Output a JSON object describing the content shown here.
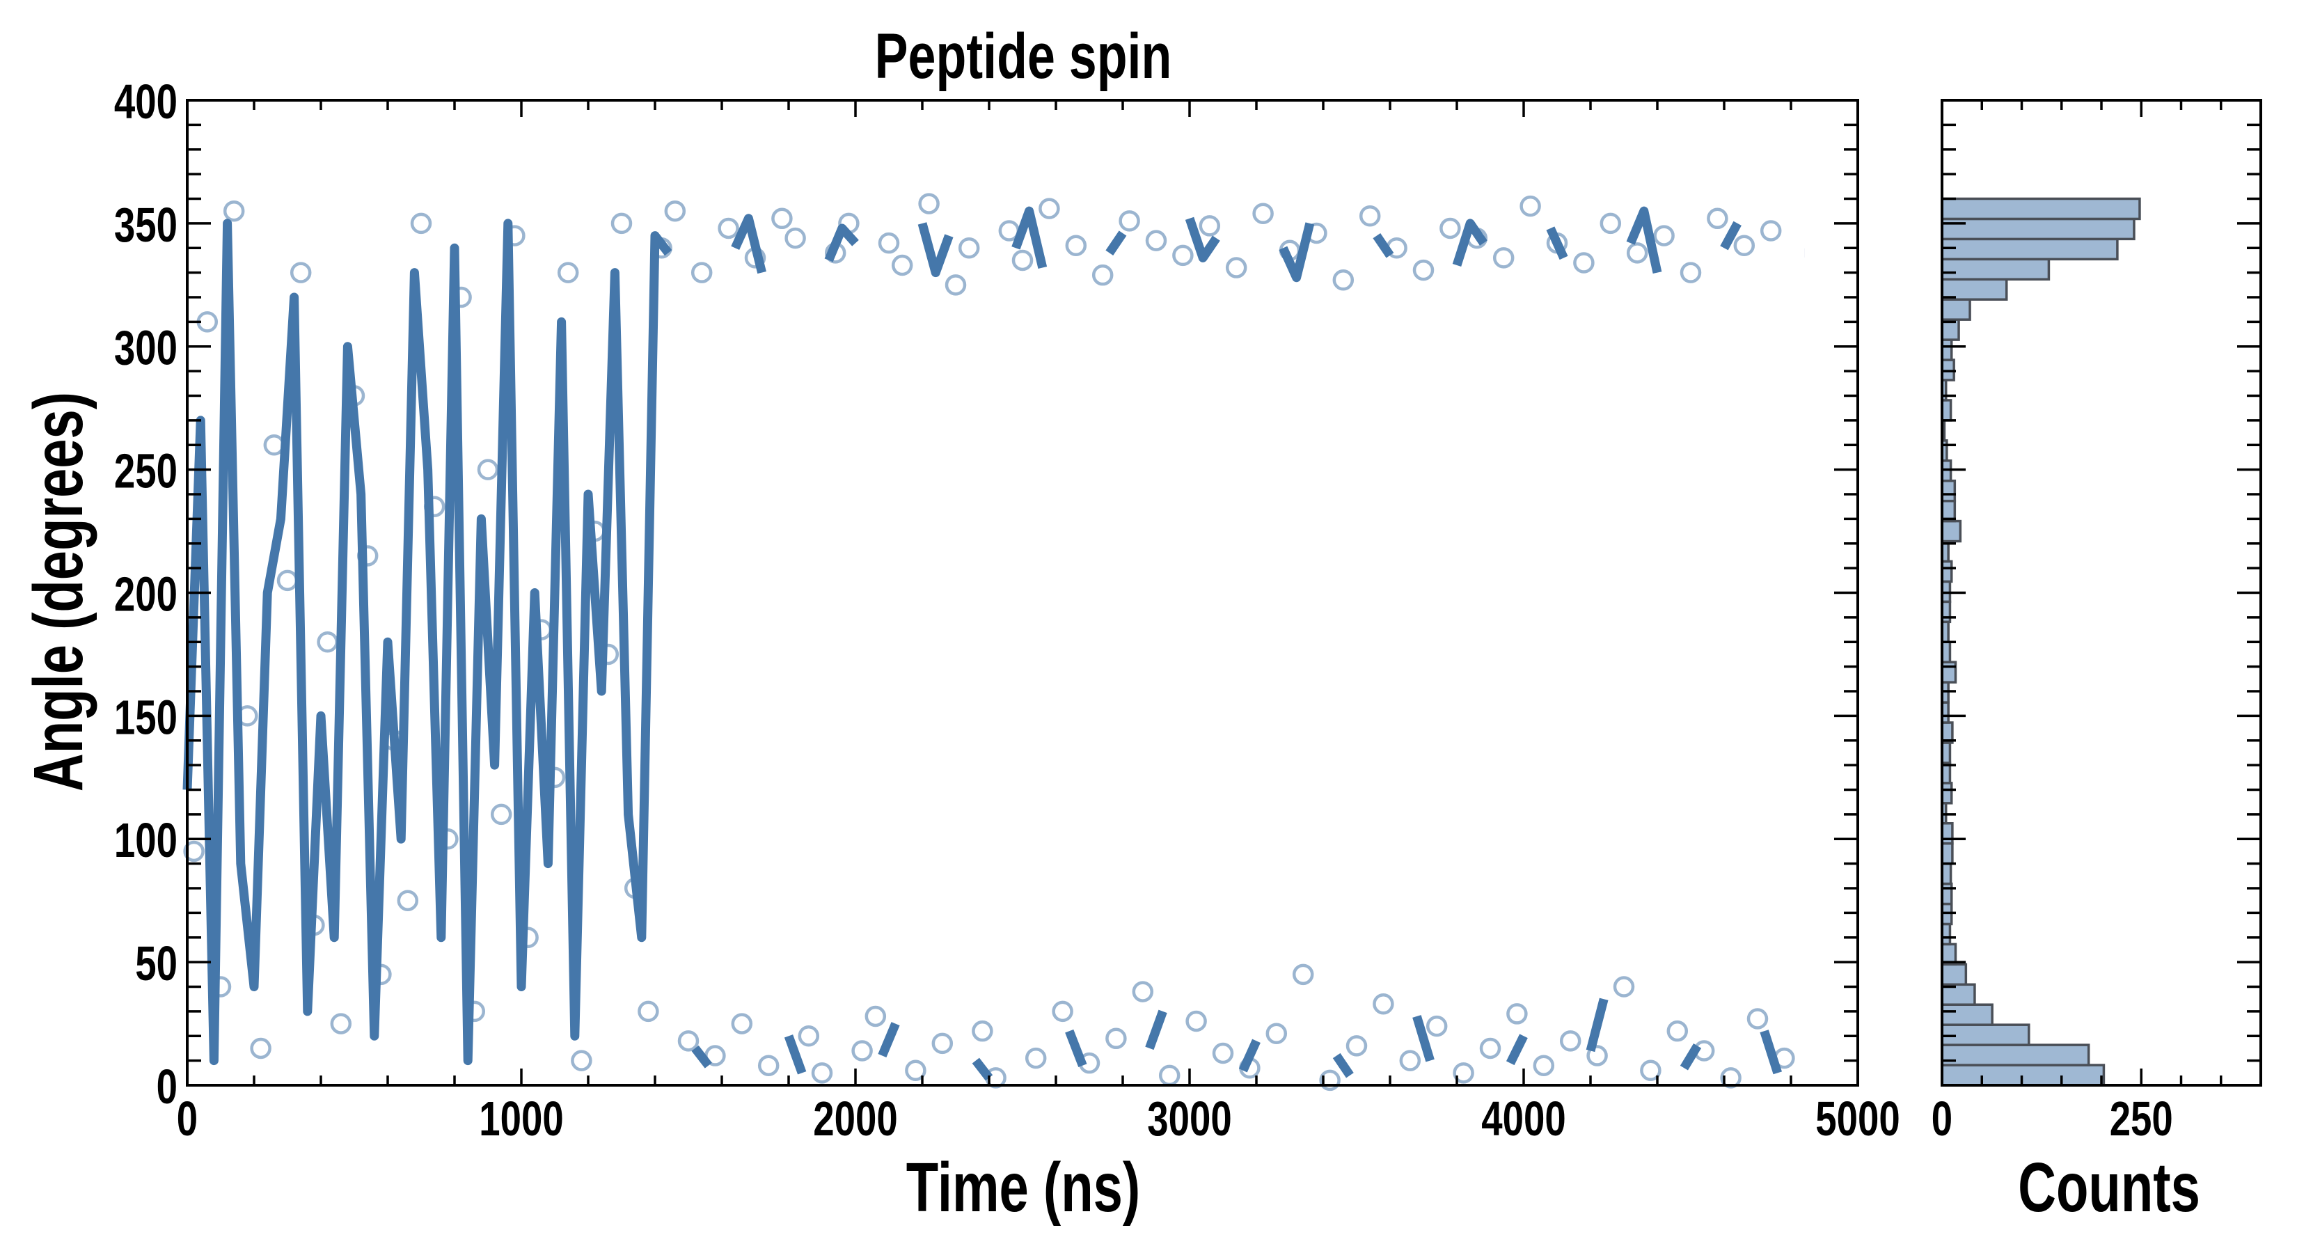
{
  "chart_data": [
    {
      "type": "scatter",
      "title": "Peptide spin",
      "xlabel": "Time (ns)",
      "ylabel": "Angle (degrees)",
      "xlim": [
        0,
        5000
      ],
      "ylim": [
        0,
        400
      ],
      "xticks": [
        0,
        1000,
        2000,
        3000,
        4000,
        5000
      ],
      "yticks": [
        0,
        50,
        100,
        150,
        200,
        250,
        300,
        350,
        400
      ],
      "grid": false,
      "colors": {
        "line": "#4577aa",
        "marker": "#8aa8c8"
      },
      "line_series": {
        "name": "angle trace",
        "t_start": 0,
        "dt": 40,
        "y": [
          120,
          270,
          10,
          350,
          90,
          40,
          200,
          230,
          320,
          30,
          150,
          60,
          300,
          240,
          20,
          180,
          100,
          330,
          250,
          60,
          340,
          10,
          230,
          130,
          350,
          40,
          200,
          90,
          310,
          20,
          240,
          160,
          330,
          110,
          60,
          345,
          338,
          null,
          15,
          8,
          null,
          340,
          352,
          330,
          null,
          20,
          5,
          null,
          335,
          348,
          342,
          null,
          12,
          25,
          null,
          350,
          330,
          345,
          null,
          10,
          3,
          null,
          340,
          355,
          332,
          null,
          22,
          8,
          null,
          338,
          346,
          null,
          15,
          30,
          null,
          352,
          336,
          344,
          null,
          6,
          18,
          null,
          340,
          328,
          350,
          null,
          12,
          4,
          null,
          345,
          337,
          null,
          28,
          10,
          null,
          333,
          350,
          342,
          null,
          9,
          20,
          null,
          348,
          336,
          null,
          14,
          35,
          null,
          342,
          355,
          330,
          null,
          7,
          16,
          null,
          340,
          350,
          null,
          22,
          5,
          null,
          338
        ]
      },
      "scatter_series": {
        "name": "samples",
        "t_start": 20,
        "dt": 40,
        "y": [
          95,
          310,
          40,
          355,
          150,
          15,
          260,
          205,
          330,
          65,
          180,
          25,
          280,
          215,
          45,
          140,
          75,
          350,
          235,
          100,
          320,
          30,
          250,
          110,
          345,
          60,
          185,
          125,
          330,
          10,
          225,
          175,
          350,
          80,
          30,
          340,
          355,
          18,
          330,
          12,
          348,
          25,
          336,
          8,
          352,
          344,
          20,
          5,
          338,
          350,
          14,
          28,
          342,
          333,
          6,
          358,
          17,
          325,
          340,
          22,
          3,
          347,
          335,
          11,
          356,
          30,
          341,
          9,
          329,
          19,
          351,
          38,
          343,
          4,
          337,
          26,
          349,
          13,
          332,
          7,
          354,
          21,
          339,
          45,
          346,
          2,
          327,
          16,
          353,
          33,
          340,
          10,
          331,
          24,
          348,
          5,
          344,
          15,
          336,
          29,
          357,
          8,
          342,
          18,
          334,
          12,
          350,
          40,
          338,
          6,
          345,
          22,
          330,
          14,
          352,
          3,
          341,
          27,
          347,
          11
        ]
      }
    },
    {
      "type": "bar",
      "orientation": "horizontal",
      "xlabel": "Counts",
      "xlim": [
        0,
        400
      ],
      "xticks": [
        0,
        250
      ],
      "ylim": [
        0,
        400
      ],
      "bin_range": [
        0,
        360
      ],
      "colors": {
        "fill": "#9fb8d3",
        "edge": "#4a4f57"
      },
      "counts_from_low_to_high": [
        203,
        184,
        109,
        63,
        41,
        30,
        17,
        10,
        12,
        12,
        11,
        13,
        13,
        5,
        12,
        10,
        10,
        13,
        8,
        8,
        17,
        10,
        8,
        10,
        10,
        12,
        8,
        23,
        16,
        16,
        11,
        6,
        3,
        11,
        5,
        15,
        12,
        21,
        35,
        81,
        134,
        220,
        241,
        248
      ]
    }
  ]
}
